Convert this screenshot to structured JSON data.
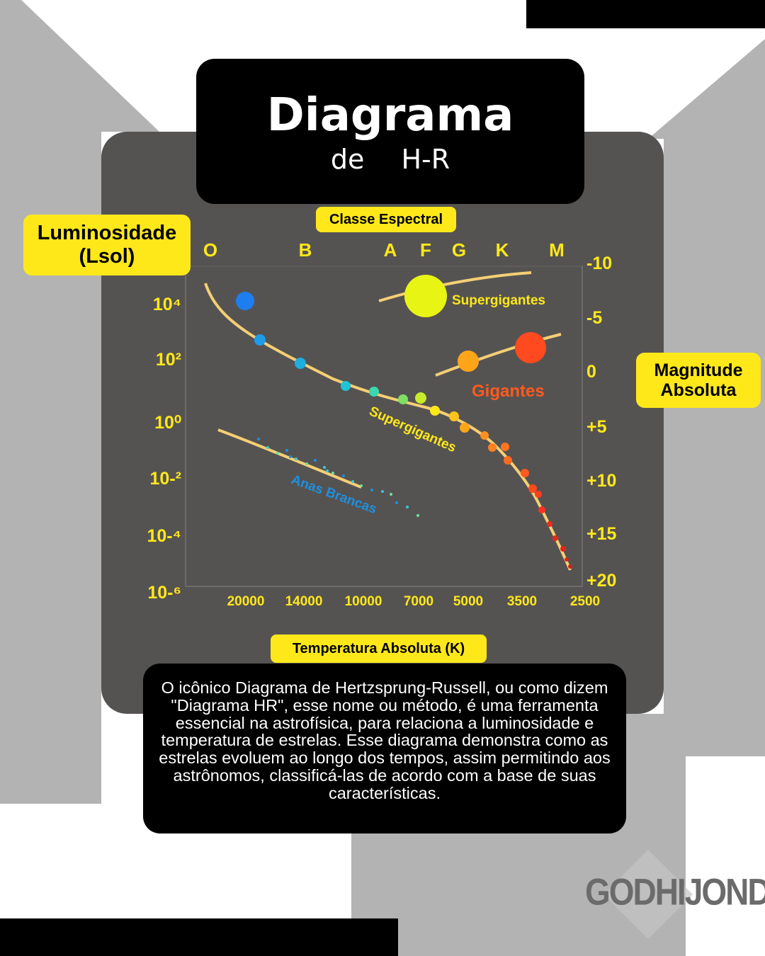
{
  "title": {
    "main": "Diagrama",
    "sub": "de H-R"
  },
  "labels": {
    "luminosity": "Luminosidade (Lsol)",
    "spectral_class": "Classe Espectral",
    "magnitude": "Magnitude Absoluta",
    "temperature": "Temperatura Absoluta (K)"
  },
  "description": "O icônico Diagrama de Hertzsprung-Russell, ou como dizem \"Diagrama HR\", esse nome ou método, é uma ferramenta essencial na astrofísica, para relaciona a luminosidade e temperatura de estrelas. Esse diagrama demonstra como as estrelas evoluem ao longo dos tempos, assim permitindo aos astrônomos, classificá-las de acordo com a base de suas características.",
  "chart_data": {
    "type": "scatter",
    "spectral_classes": [
      "O",
      "B",
      "A",
      "F",
      "G",
      "K",
      "M"
    ],
    "luminosity_ticks": [
      "10⁴",
      "10²",
      "10⁰",
      "10-²",
      "10-⁴",
      "10-⁶"
    ],
    "magnitude_ticks": [
      "-10",
      "-5",
      "0",
      "+5",
      "+10",
      "+15",
      "+20"
    ],
    "temperature_ticks": [
      "20000",
      "14000",
      "10000",
      "7000",
      "5000",
      "3500",
      "2500"
    ],
    "regions": [
      {
        "name": "Supergigantes",
        "color": "#ffe81a"
      },
      {
        "name": "Gigantes",
        "color": "#ff5a1f"
      },
      {
        "name": "Supergigantes",
        "color": "#ffe81a"
      },
      {
        "name": "Anas Brancas",
        "color": "#1e90e0"
      }
    ]
  },
  "logo": "GODHIJOND",
  "colors": {
    "accent": "#ffe81a",
    "card": "#555352",
    "background_gray": "#b3b3b3"
  }
}
